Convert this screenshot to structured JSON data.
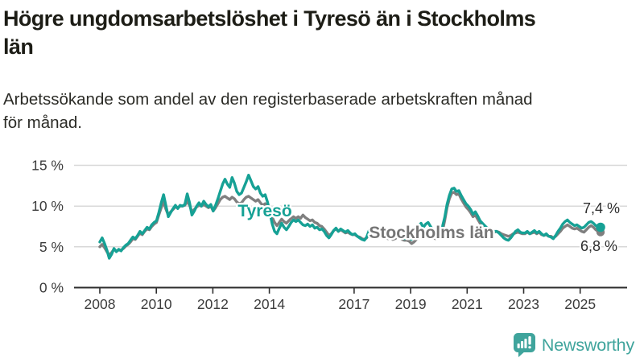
{
  "chart_data": {
    "type": "line",
    "title": "Högre ungdomsarbetslöshet i Tyresö än i Stockholms\nlän",
    "subtitle": "Arbetssökande som andel av den registerbaserade arbetskraften månad\nför månad.",
    "frequency": "monthly",
    "x_start_year": 2008,
    "x_tick_years": [
      2008,
      2010,
      2012,
      2014,
      2017,
      2019,
      2021,
      2023,
      2025
    ],
    "x_tick_labels": [
      "2008",
      "2010",
      "2012",
      "2014",
      "2017",
      "2019",
      "2021",
      "2023",
      "2025"
    ],
    "y_ticks": [
      0,
      5,
      10,
      15
    ],
    "y_tick_labels": [
      "0 %",
      "5 %",
      "10 %",
      "15 %"
    ],
    "ylim": [
      0,
      16.5
    ],
    "grid": "horizontal",
    "legend_position": "labels-on-chart",
    "colors": {
      "tyreso": "#16a195",
      "stockholm": "#7f7f7f",
      "grid": "#d8d8d8",
      "axis": "#2e2e2e"
    },
    "series": [
      {
        "name": "Stockholms län",
        "label_text": "Stockholms län",
        "color": "#7f7f7f",
        "end_label": "6,8 %",
        "end_value": 6.8,
        "values": [
          5.0,
          5.3,
          4.9,
          4.4,
          4.0,
          4.3,
          4.7,
          4.5,
          4.6,
          4.6,
          4.8,
          5.1,
          5.3,
          5.6,
          6.0,
          5.9,
          6.3,
          6.7,
          6.5,
          6.9,
          7.2,
          7.1,
          7.5,
          7.8,
          8.0,
          8.9,
          9.8,
          10.5,
          9.6,
          8.9,
          9.3,
          9.6,
          9.9,
          9.8,
          10.0,
          10.0,
          10.1,
          10.6,
          10.1,
          9.3,
          9.6,
          9.9,
          10.1,
          10.0,
          10.2,
          10.0,
          9.8,
          10.0,
          9.4,
          9.8,
          10.3,
          10.8,
          11.1,
          11.2,
          11.0,
          10.8,
          11.1,
          10.9,
          10.5,
          10.3,
          10.4,
          10.8,
          11.1,
          11.2,
          11.0,
          10.8,
          10.6,
          10.8,
          10.4,
          10.1,
          10.3,
          9.9,
          9.2,
          8.6,
          8.0,
          7.6,
          8.0,
          8.4,
          8.1,
          7.9,
          8.2,
          8.5,
          8.7,
          8.5,
          8.7,
          8.5,
          8.9,
          8.6,
          8.4,
          8.2,
          8.3,
          8.0,
          7.9,
          7.6,
          7.5,
          7.2,
          6.8,
          6.4,
          6.6,
          7.0,
          7.2,
          6.9,
          7.1,
          6.9,
          6.7,
          6.8,
          6.6,
          6.5,
          6.5,
          6.3,
          6.2,
          6.0,
          5.9,
          6.1,
          6.6,
          6.9,
          6.7,
          6.5,
          6.4,
          6.4,
          6.3,
          6.1,
          6.0,
          6.1,
          5.9,
          6.0,
          6.2,
          6.1,
          5.9,
          5.8,
          5.8,
          5.7,
          5.4,
          5.6,
          5.9,
          6.2,
          6.4,
          6.2,
          6.5,
          6.6,
          6.3,
          6.1,
          6.0,
          6.2,
          6.4,
          6.8,
          8.2,
          9.8,
          10.9,
          11.6,
          11.7,
          11.4,
          11.5,
          10.9,
          10.4,
          9.9,
          9.6,
          9.2,
          8.7,
          8.9,
          8.4,
          7.9,
          7.6,
          7.3,
          7.1,
          6.9,
          6.9,
          6.8,
          6.9,
          6.8,
          6.6,
          6.5,
          6.4,
          6.3,
          6.4,
          6.6,
          6.7,
          6.8,
          6.7,
          6.6,
          6.6,
          6.8,
          6.6,
          6.7,
          6.8,
          6.6,
          6.8,
          6.5,
          6.4,
          6.5,
          6.3,
          6.3,
          6.1,
          6.3,
          6.6,
          6.9,
          7.3,
          7.5,
          7.7,
          7.5,
          7.3,
          7.2,
          7.3,
          7.1,
          6.9,
          6.8,
          7.1,
          7.4,
          7.6,
          7.4,
          7.1,
          6.9,
          6.8
        ]
      },
      {
        "name": "Tyresö",
        "label_text": "Tyresö",
        "color": "#16a195",
        "end_label": "7,4 %",
        "end_value": 7.4,
        "values": [
          5.6,
          6.1,
          5.4,
          4.6,
          3.6,
          4.1,
          4.8,
          4.4,
          4.7,
          4.5,
          4.9,
          5.2,
          5.4,
          5.8,
          6.2,
          6.0,
          6.4,
          6.9,
          6.6,
          7.0,
          7.4,
          7.2,
          7.7,
          8.0,
          8.2,
          9.2,
          10.4,
          11.4,
          10.0,
          8.7,
          9.2,
          9.7,
          10.1,
          9.7,
          10.1,
          10.0,
          10.2,
          11.5,
          10.4,
          8.9,
          9.4,
          10.0,
          10.4,
          10.0,
          10.6,
          10.2,
          9.9,
          10.2,
          9.4,
          10.1,
          10.9,
          11.8,
          12.7,
          13.3,
          12.7,
          12.3,
          13.5,
          12.8,
          11.8,
          11.4,
          11.6,
          12.3,
          13.0,
          13.8,
          13.1,
          12.4,
          12.1,
          12.4,
          11.6,
          11.2,
          11.4,
          10.5,
          9.2,
          7.8,
          6.9,
          6.6,
          7.3,
          7.9,
          7.4,
          7.1,
          7.5,
          8.0,
          8.3,
          8.1,
          8.3,
          8.0,
          7.7,
          7.6,
          7.8,
          7.5,
          7.7,
          7.3,
          7.4,
          7.1,
          7.2,
          6.9,
          6.4,
          6.1,
          6.5,
          7.0,
          7.3,
          6.9,
          7.2,
          7.0,
          6.8,
          7.0,
          6.7,
          6.5,
          6.6,
          6.3,
          6.1,
          5.9,
          5.8,
          6.2,
          7.0,
          7.4,
          7.2,
          6.9,
          6.7,
          6.8,
          6.6,
          6.4,
          6.2,
          6.4,
          6.1,
          6.3,
          6.6,
          6.4,
          6.2,
          6.0,
          6.2,
          6.1,
          5.9,
          6.3,
          6.8,
          7.6,
          7.9,
          7.4,
          7.8,
          8.0,
          7.5,
          7.1,
          6.9,
          7.0,
          7.1,
          7.4,
          8.6,
          10.2,
          11.3,
          12.1,
          12.2,
          11.8,
          11.9,
          11.3,
          10.8,
          10.3,
          10.0,
          9.6,
          9.0,
          9.3,
          8.8,
          8.2,
          7.9,
          7.6,
          7.3,
          7.1,
          7.0,
          6.9,
          6.9,
          6.7,
          6.4,
          6.1,
          5.9,
          5.8,
          6.1,
          6.5,
          6.9,
          7.1,
          6.8,
          6.7,
          6.7,
          6.9,
          6.6,
          6.8,
          7.0,
          6.7,
          6.9,
          6.6,
          6.4,
          6.6,
          6.3,
          6.2,
          6.0,
          6.4,
          6.9,
          7.3,
          7.8,
          8.1,
          8.3,
          8.0,
          7.8,
          7.6,
          7.7,
          7.5,
          7.3,
          7.4,
          7.7,
          8.0,
          8.1,
          7.9,
          7.6,
          7.5,
          7.4
        ]
      }
    ]
  },
  "footer": {
    "brand": "Newsworthy"
  }
}
